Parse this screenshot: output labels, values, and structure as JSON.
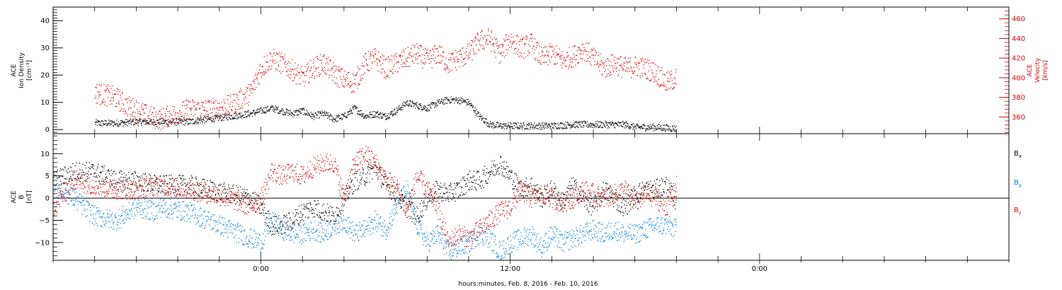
{
  "chart_data": [
    {
      "type": "scatter",
      "panel": "plasma",
      "ylabel_lines": [
        "ACE",
        "Ion Density",
        "[cm⁻³]"
      ],
      "ylim": [
        -1.5,
        45
      ],
      "yticks": [
        0,
        10,
        20,
        30,
        40
      ],
      "right_ylabel_lines": [
        "ACE",
        "Velocity",
        "[km/s]"
      ],
      "right_ylim": [
        343,
        472
      ],
      "right_yticks": [
        360,
        380,
        400,
        420,
        440,
        460
      ],
      "grid": false,
      "series": [
        {
          "name": "",
          "axis": "left",
          "color": "#000000",
          "x": [
            -8.0,
            -7.0,
            -6.0,
            -5.5,
            -4.9,
            -3.5,
            -2.5,
            -1.5,
            -0.5,
            0.5,
            1.0,
            1.5,
            2.0,
            2.5,
            3.0,
            3.5,
            4.0,
            4.5,
            5.0,
            5.5,
            6.0,
            6.5,
            7.0,
            7.5,
            8.0,
            8.5,
            9.0,
            9.5,
            10.0,
            10.5,
            11.0,
            11.5,
            12.0,
            13.0,
            14.0,
            15.0,
            16.0,
            17.0,
            17.5,
            18.0,
            19.0,
            20.0
          ],
          "y": [
            2.5,
            2.5,
            3.0,
            3.0,
            3.0,
            3.0,
            4.0,
            5.0,
            6.0,
            8.0,
            7.0,
            6.0,
            7.0,
            5.0,
            6.0,
            4.0,
            5.0,
            8.0,
            5.0,
            6.0,
            5.0,
            7.0,
            10.0,
            9.0,
            8.0,
            10.0,
            11.0,
            11.0,
            10.0,
            5.0,
            2.0,
            1.5,
            1.5,
            1.5,
            1.5,
            2.0,
            2.0,
            2.0,
            2.0,
            1.0,
            1.0,
            0.5
          ]
        },
        {
          "name": "",
          "axis": "right",
          "color": "#dd0000",
          "x": [
            -8.0,
            -7.5,
            -7.0,
            -6.5,
            -6.0,
            -5.5,
            -4.9,
            -3.5,
            -2.5,
            -1.5,
            -0.5,
            0.0,
            0.5,
            1.0,
            1.5,
            2.0,
            2.5,
            3.0,
            3.5,
            4.0,
            4.5,
            5.0,
            5.5,
            6.0,
            6.5,
            7.0,
            7.5,
            8.0,
            8.5,
            9.0,
            9.5,
            10.0,
            10.5,
            11.0,
            11.5,
            12.0,
            12.5,
            13.0,
            13.5,
            14.0,
            14.5,
            15.0,
            15.5,
            16.0,
            16.5,
            17.0,
            17.5,
            18.0,
            18.5,
            19.0,
            19.5,
            20.0
          ],
          "y": [
            385,
            383,
            380,
            372,
            368,
            362,
            358,
            368,
            368,
            372,
            385,
            410,
            420,
            415,
            408,
            400,
            410,
            415,
            405,
            398,
            395,
            415,
            420,
            410,
            415,
            420,
            425,
            418,
            425,
            415,
            420,
            425,
            438,
            440,
            425,
            440,
            430,
            435,
            420,
            425,
            418,
            422,
            430,
            420,
            410,
            415,
            410,
            412,
            410,
            405,
            395,
            400
          ]
        }
      ]
    },
    {
      "type": "scatter",
      "panel": "magnetic",
      "ylabel_lines": [
        "ACE",
        "B",
        "[nT]"
      ],
      "ylim": [
        -14,
        14.5
      ],
      "yticks": [
        -10,
        -5,
        0,
        5,
        10
      ],
      "zero_line": true,
      "grid": false,
      "xlabel": "hours:minutes, Feb.  8, 2016 - Feb. 10, 2016",
      "xlim": [
        -10,
        36
      ],
      "xticks": [
        0,
        12,
        24
      ],
      "xtick_labels": [
        "0:00",
        "12:00",
        "0:00"
      ],
      "legend_placement": "right",
      "legend": [
        {
          "base": "B",
          "sub": "x",
          "color": "#000000"
        },
        {
          "base": "B",
          "sub": "y",
          "color": "#0080dd"
        },
        {
          "base": "B",
          "sub": "z",
          "color": "#dd0000"
        }
      ],
      "series": [
        {
          "name": "Bx",
          "color": "#000000",
          "x": [
            -10.0,
            -9.0,
            -8.0,
            -7.0,
            -6.0,
            -5.0,
            -4.9,
            -3.5,
            -2.5,
            -1.5,
            -0.5,
            0.0,
            0.5,
            1.0,
            1.5,
            2.0,
            2.5,
            3.0,
            3.5,
            4.0,
            4.5,
            5.0,
            5.5,
            6.0,
            6.5,
            7.0,
            7.5,
            8.0,
            8.5,
            9.0,
            9.5,
            10.0,
            10.5,
            11.0,
            11.5,
            12.0,
            12.5,
            13.0,
            13.5,
            14.0,
            14.5,
            15.0,
            15.5,
            16.0,
            16.5,
            17.0,
            17.5,
            18.0,
            18.5,
            19.0,
            19.5,
            20.0
          ],
          "y": [
            4,
            6,
            6,
            4,
            4,
            3,
            3,
            3,
            2,
            1,
            0,
            -2,
            -6,
            -6,
            -5,
            -3,
            -2,
            -3,
            -4,
            0,
            4,
            5,
            7,
            3,
            1,
            -2,
            -4,
            0,
            2,
            1,
            2,
            4,
            4,
            6,
            8,
            5,
            2,
            3,
            0,
            2,
            -1,
            3,
            0,
            -2,
            2,
            0,
            -2,
            1,
            2,
            2,
            3,
            -1
          ]
        },
        {
          "name": "By",
          "color": "#0080dd",
          "x": [
            -10.0,
            -9.0,
            -8.0,
            -7.0,
            -6.0,
            -5.0,
            -4.9,
            -3.5,
            -2.5,
            -1.5,
            -0.5,
            0.0,
            0.5,
            1.0,
            1.5,
            2.0,
            2.5,
            3.0,
            3.5,
            4.0,
            4.5,
            5.0,
            5.5,
            6.0,
            6.5,
            7.0,
            7.5,
            8.0,
            8.5,
            9.0,
            9.5,
            10.0,
            10.5,
            11.0,
            11.5,
            12.0,
            12.5,
            13.0,
            13.5,
            14.0,
            14.5,
            15.0,
            15.5,
            16.0,
            16.5,
            17.0,
            17.5,
            18.0,
            18.5,
            19.0,
            19.5,
            20.0
          ],
          "y": [
            3,
            0,
            -4,
            -5,
            -2,
            -3,
            -2,
            -3,
            -5,
            -7,
            -9,
            -10,
            -5,
            -7,
            -8,
            -8,
            -7,
            -8,
            -6,
            -5,
            -8,
            -7,
            -5,
            -7,
            -2,
            2,
            -6,
            -10,
            -8,
            -12,
            -11,
            -10,
            -8,
            -9,
            -12,
            -10,
            -9,
            -8,
            -11,
            -8,
            -10,
            -9,
            -8,
            -7,
            -8,
            -7,
            -8,
            -8,
            -7,
            -6,
            -6,
            -7
          ]
        },
        {
          "name": "Bz",
          "color": "#dd0000",
          "x": [
            -10.0,
            -9.0,
            -8.0,
            -7.0,
            -6.0,
            -5.0,
            -4.9,
            -3.5,
            -2.5,
            -1.5,
            -0.5,
            0.0,
            0.5,
            1.0,
            1.5,
            2.0,
            2.5,
            3.0,
            3.5,
            4.0,
            4.5,
            5.0,
            5.5,
            6.0,
            6.5,
            7.0,
            7.5,
            8.0,
            8.5,
            9.0,
            9.5,
            10.0,
            10.5,
            11.0,
            11.5,
            12.0,
            12.5,
            13.0,
            13.5,
            14.0,
            14.5,
            15.0,
            15.5,
            16.0,
            16.5,
            17.0,
            17.5,
            18.0,
            18.5,
            19.0,
            19.5,
            20.0
          ],
          "y": [
            -2,
            4,
            3,
            2,
            2,
            3,
            3,
            2,
            1,
            0,
            -2,
            0,
            6,
            5,
            6,
            5,
            7,
            8,
            8,
            0,
            8,
            10,
            8,
            4,
            3,
            -3,
            5,
            2,
            -2,
            -10,
            -8,
            -9,
            -7,
            -5,
            -3,
            -2,
            2,
            0,
            1,
            0,
            -1,
            0,
            2,
            1,
            0,
            1,
            2,
            -1,
            1,
            0,
            -2,
            3
          ]
        }
      ]
    }
  ]
}
